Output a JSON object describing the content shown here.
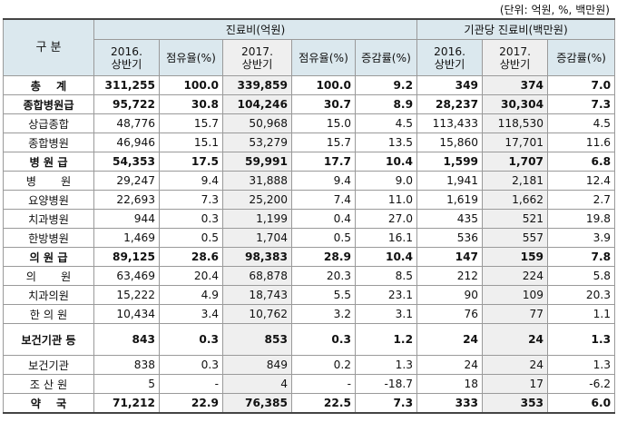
{
  "unit_note": "(단위: 억원, %, 백만원)",
  "header": {
    "category": "구  분",
    "group1": "진료비(억원)",
    "group2": "기관당 진료비(백만원)",
    "cols": [
      "2016.\n상반기",
      "점유율(%)",
      "2017.\n상반기",
      "점유율(%)",
      "증감률(%)",
      "2016.\n상반기",
      "2017.\n상반기",
      "증감률(%)"
    ]
  },
  "rows": [
    {
      "name": "총    계",
      "bold": true,
      "align": "center",
      "v": [
        "311,255",
        "100.0",
        "339,859",
        "100.0",
        "9.2",
        "349",
        "374",
        "7.0"
      ]
    },
    {
      "name": "종합병원급",
      "bold": true,
      "align": "center",
      "v": [
        "95,722",
        "30.8",
        "104,246",
        "30.7",
        "8.9",
        "28,237",
        "30,304",
        "7.3"
      ]
    },
    {
      "name": "상급종합",
      "bold": false,
      "align": "center",
      "v": [
        "48,776",
        "15.7",
        "50,968",
        "15.0",
        "4.5",
        "113,433",
        "118,530",
        "4.5"
      ]
    },
    {
      "name": "종합병원",
      "bold": false,
      "align": "center",
      "v": [
        "46,946",
        "15.1",
        "53,279",
        "15.7",
        "13.5",
        "15,860",
        "17,701",
        "11.6"
      ]
    },
    {
      "name": "병 원 급",
      "bold": true,
      "align": "center",
      "v": [
        "54,353",
        "17.5",
        "59,991",
        "17.7",
        "10.4",
        "1,599",
        "1,707",
        "6.8"
      ]
    },
    {
      "name": "병       원",
      "bold": false,
      "align": "center",
      "v": [
        "29,247",
        "9.4",
        "31,888",
        "9.4",
        "9.0",
        "1,941",
        "2,181",
        "12.4"
      ]
    },
    {
      "name": "요양병원",
      "bold": false,
      "align": "center",
      "v": [
        "22,693",
        "7.3",
        "25,200",
        "7.4",
        "11.0",
        "1,619",
        "1,662",
        "2.7"
      ]
    },
    {
      "name": "치과병원",
      "bold": false,
      "align": "center",
      "v": [
        "944",
        "0.3",
        "1,199",
        "0.4",
        "27.0",
        "435",
        "521",
        "19.8"
      ]
    },
    {
      "name": "한방병원",
      "bold": false,
      "align": "center",
      "v": [
        "1,469",
        "0.5",
        "1,704",
        "0.5",
        "16.1",
        "536",
        "557",
        "3.9"
      ]
    },
    {
      "name": "의 원 급",
      "bold": true,
      "align": "center",
      "v": [
        "89,125",
        "28.6",
        "98,383",
        "28.9",
        "10.4",
        "147",
        "159",
        "7.8"
      ]
    },
    {
      "name": "의       원",
      "bold": false,
      "align": "center",
      "v": [
        "63,469",
        "20.4",
        "68,878",
        "20.3",
        "8.5",
        "212",
        "224",
        "5.8"
      ]
    },
    {
      "name": "치과의원",
      "bold": false,
      "align": "center",
      "v": [
        "15,222",
        "4.9",
        "18,743",
        "5.5",
        "23.1",
        "90",
        "109",
        "20.3"
      ]
    },
    {
      "name": "한 의 원",
      "bold": false,
      "align": "center",
      "v": [
        "10,434",
        "3.4",
        "10,762",
        "3.2",
        "3.1",
        "76",
        "77",
        "1.1"
      ]
    },
    {
      "name": "보건기관 등",
      "bold": true,
      "align": "center",
      "tall": true,
      "v": [
        "843",
        "0.3",
        "853",
        "0.3",
        "1.2",
        "24",
        "24",
        "1.3"
      ]
    },
    {
      "name": "보건기관",
      "bold": false,
      "align": "center",
      "v": [
        "838",
        "0.3",
        "849",
        "0.2",
        "1.3",
        "24",
        "24",
        "1.3"
      ]
    },
    {
      "name": "조 산 원",
      "bold": false,
      "align": "center",
      "v": [
        "5",
        "-",
        "4",
        "-",
        "-18.7",
        "18",
        "17",
        "-6.2"
      ]
    },
    {
      "name": "약    국",
      "bold": true,
      "align": "center",
      "v": [
        "71,212",
        "22.9",
        "76,385",
        "22.5",
        "7.3",
        "333",
        "353",
        "6.0"
      ]
    }
  ]
}
